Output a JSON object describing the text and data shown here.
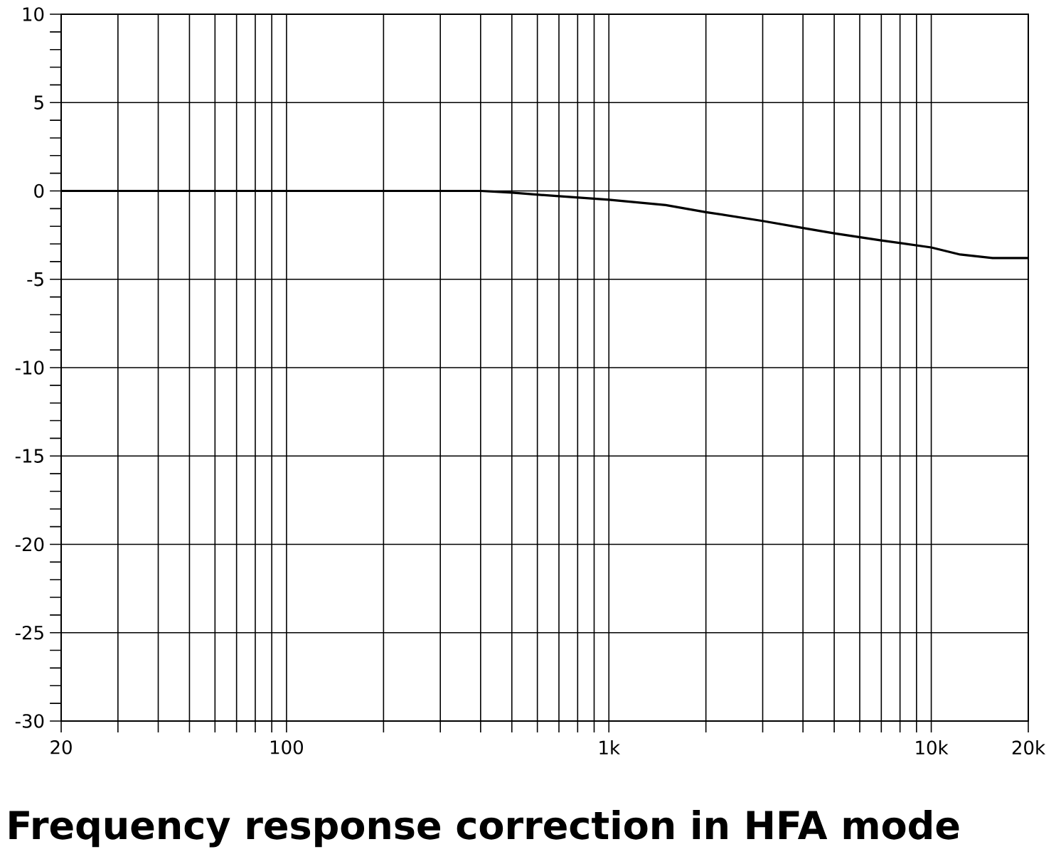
{
  "chart_data": {
    "type": "line",
    "title": "Frequency response correction in HFA mode",
    "x": [
      20,
      50,
      100,
      200,
      300,
      400,
      500,
      700,
      1000,
      1500,
      2000,
      3000,
      4000,
      5000,
      7000,
      10000,
      12300,
      15500,
      20000
    ],
    "series": [
      {
        "color": "#000000",
        "values": [
          0,
          0,
          0,
          0,
          0,
          0,
          -0.1,
          -0.3,
          -0.5,
          -0.8,
          -1.2,
          -1.7,
          -2.1,
          -2.4,
          -2.8,
          -3.2,
          -3.6,
          -3.8,
          -3.8
        ]
      }
    ],
    "log": "x",
    "xlim": [
      20,
      20000
    ],
    "ylim": [
      -30,
      10
    ],
    "xticks": [
      {
        "value": 20,
        "label": "20"
      },
      {
        "value": 30,
        "label": null
      },
      {
        "value": 40,
        "label": null
      },
      {
        "value": 50,
        "label": null
      },
      {
        "value": 60,
        "label": null
      },
      {
        "value": 70,
        "label": null
      },
      {
        "value": 80,
        "label": null
      },
      {
        "value": 90,
        "label": null
      },
      {
        "value": 100,
        "label": "100"
      },
      {
        "value": 200,
        "label": null
      },
      {
        "value": 300,
        "label": null
      },
      {
        "value": 400,
        "label": null
      },
      {
        "value": 500,
        "label": null
      },
      {
        "value": 600,
        "label": null
      },
      {
        "value": 700,
        "label": null
      },
      {
        "value": 800,
        "label": null
      },
      {
        "value": 900,
        "label": null
      },
      {
        "value": 1000,
        "label": "1k"
      },
      {
        "value": 2000,
        "label": null
      },
      {
        "value": 3000,
        "label": null
      },
      {
        "value": 4000,
        "label": null
      },
      {
        "value": 5000,
        "label": null
      },
      {
        "value": 6000,
        "label": null
      },
      {
        "value": 7000,
        "label": null
      },
      {
        "value": 8000,
        "label": null
      },
      {
        "value": 9000,
        "label": null
      },
      {
        "value": 10000,
        "label": "10k"
      },
      {
        "value": 20000,
        "label": "20k"
      }
    ],
    "yticks": [
      -30,
      -25,
      -20,
      -15,
      -10,
      -5,
      0,
      5,
      10
    ],
    "grid": true,
    "marker": "none",
    "line_style": "solid"
  }
}
